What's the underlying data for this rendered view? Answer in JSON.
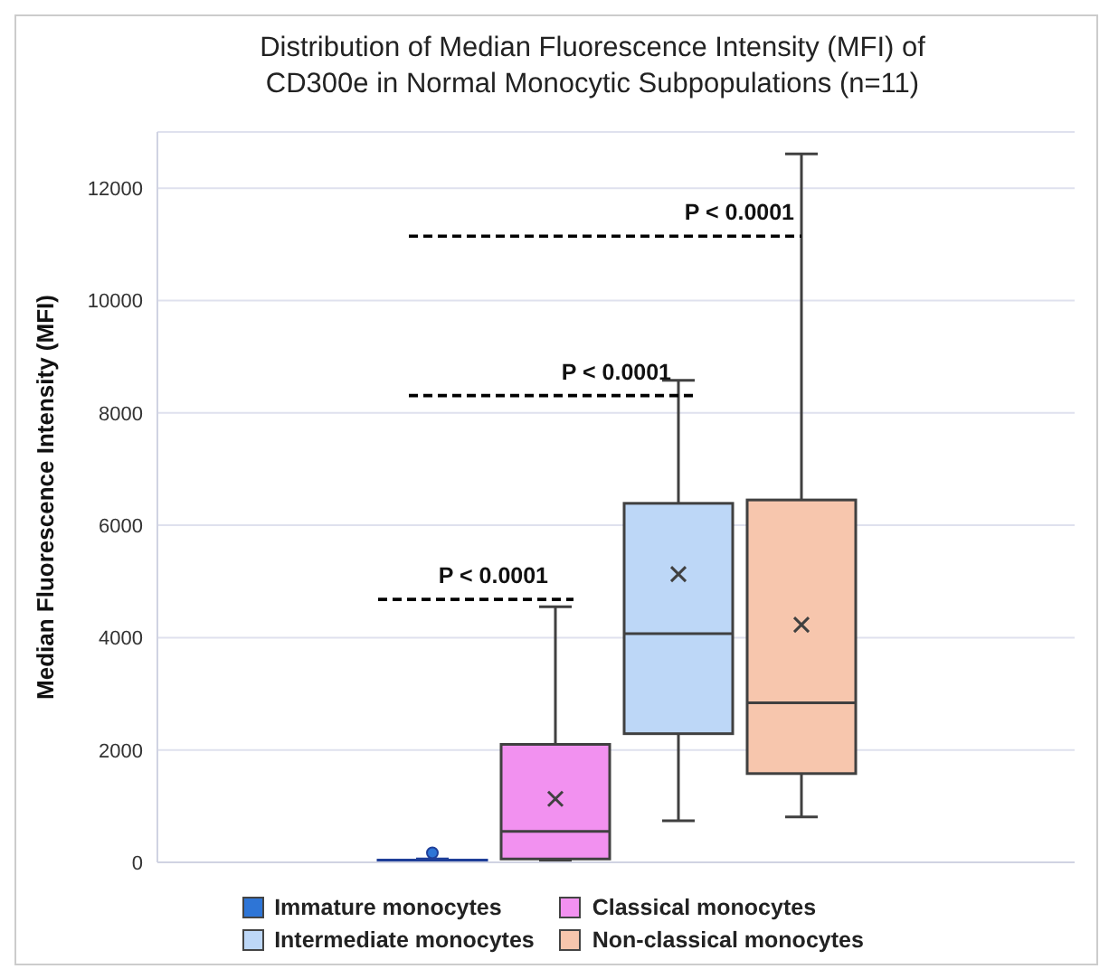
{
  "chart_data": {
    "type": "box",
    "title": "Distribution of Median Fluorescence Intensity (MFI) of CD300e in Normal Monocytic Subpopulations (n=11)",
    "ylabel": "Median Fluorescence Intensity (MFI)",
    "categories": [
      null
    ],
    "series": [
      {
        "name": "Immature monocytes",
        "color": "#2e75d6",
        "boxes": [
          {
            "low": 0,
            "q1": 10,
            "median": 20,
            "q3": 40,
            "high": 60,
            "outliers": [
              170
            ]
          }
        ]
      },
      {
        "name": "Classical monocytes",
        "color": "#f291f0",
        "boxes": [
          {
            "low": 30,
            "q1": 60,
            "median": 550,
            "q3": 2100,
            "high": 4550,
            "mean": 1130
          }
        ]
      },
      {
        "name": "Intermediate monocytes",
        "color": "#bdd7f7",
        "boxes": [
          {
            "low": 740,
            "q1": 2290,
            "median": 4070,
            "q3": 6390,
            "high": 8580,
            "mean": 5130
          }
        ]
      },
      {
        "name": "Non-classical monocytes",
        "color": "#f7c6ad",
        "boxes": [
          {
            "low": 810,
            "q1": 1580,
            "median": 2840,
            "q3": 6450,
            "high": 12610,
            "mean": 4230
          }
        ]
      }
    ],
    "annotations": [
      "P < 0.0001",
      "P < 0.0001",
      "P < 0.0001"
    ],
    "ylim": [
      0,
      13000
    ],
    "yticks": [
      0,
      2000,
      4000,
      6000,
      8000,
      10000,
      12000
    ],
    "grid": "y",
    "legend": "bottom"
  }
}
